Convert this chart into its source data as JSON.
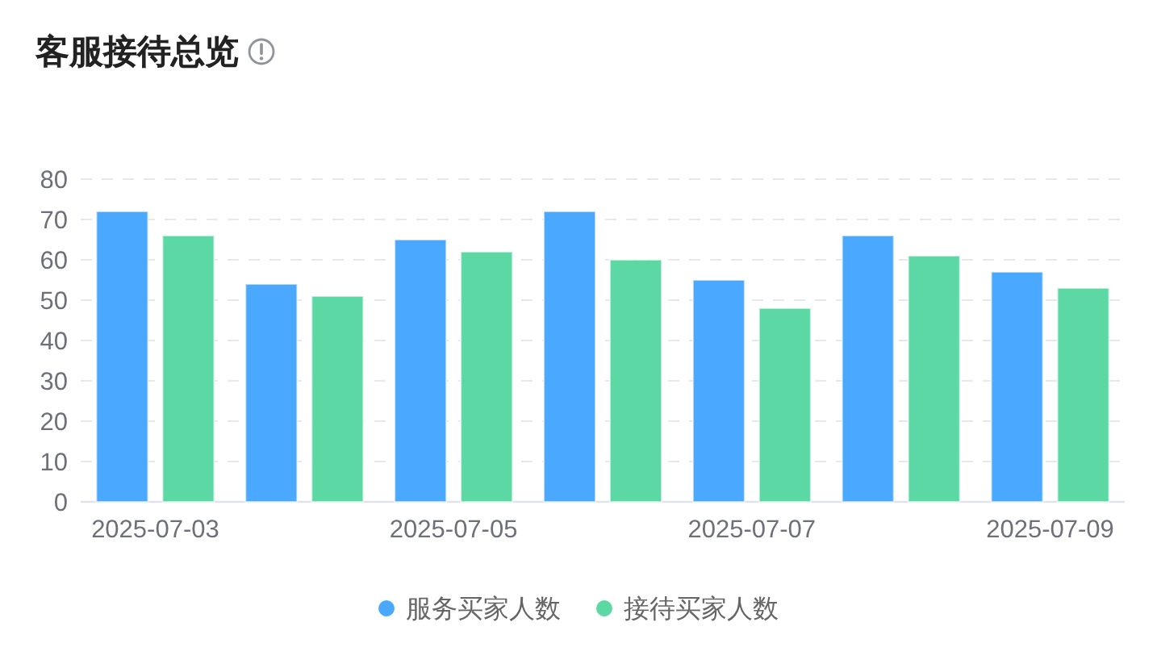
{
  "chart_data": {
    "type": "bar",
    "title": "客服接待总览",
    "categories": [
      "2025-07-03",
      null,
      "2025-07-05",
      null,
      "2025-07-07",
      null,
      "2025-07-09"
    ],
    "series": [
      {
        "name": "服务买家人数",
        "color": "#4ba8ff",
        "values": [
          72,
          54,
          65,
          72,
          55,
          66,
          57
        ]
      },
      {
        "name": "接待买家人数",
        "color": "#5cd8a5",
        "values": [
          66,
          51,
          62,
          60,
          48,
          61,
          53
        ]
      }
    ],
    "ylim": [
      0,
      80
    ],
    "yticks": [
      0,
      10,
      20,
      30,
      40,
      50,
      60,
      70,
      80
    ],
    "grid": "y",
    "legend": "bottom"
  }
}
